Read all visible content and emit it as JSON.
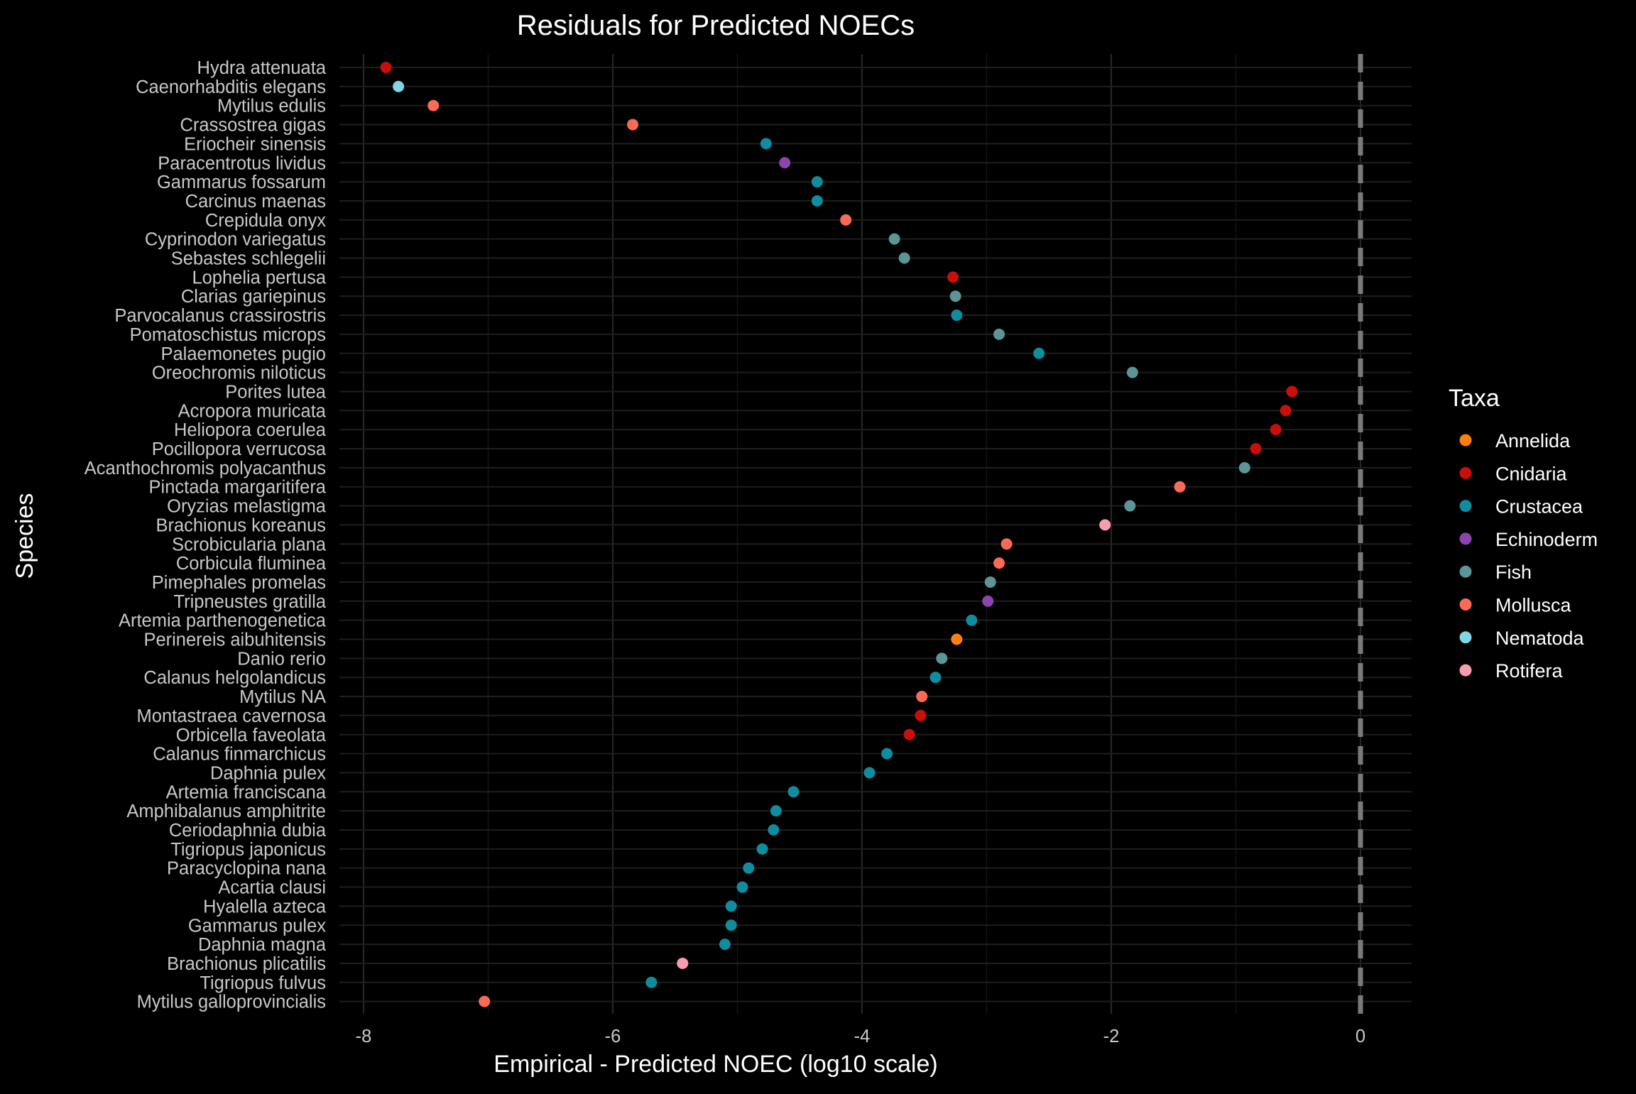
{
  "chart_data": {
    "type": "scatter",
    "title": "Residuals for Predicted NOECs",
    "xlabel": "Empirical - Predicted NOEC (log10 scale)",
    "ylabel": "Species",
    "xlim": [
      -8.3,
      0.4
    ],
    "xticks": [
      -8,
      -6,
      -4,
      -2,
      0
    ],
    "xtick_labels": [
      "-8",
      "-6",
      "-4",
      "-2",
      "0"
    ],
    "reference_line": {
      "x": 0,
      "style": "dashed"
    },
    "grid": true,
    "legend": {
      "title": "Taxa",
      "position": "right"
    },
    "taxa": [
      {
        "name": "Annelida",
        "color": "#ff7f0e"
      },
      {
        "name": "Cnidaria",
        "color": "#c80f0a"
      },
      {
        "name": "Crustacea",
        "color": "#0f8c9e"
      },
      {
        "name": "Echinoderm",
        "color": "#8e44ad"
      },
      {
        "name": "Fish",
        "color": "#5b9595"
      },
      {
        "name": "Mollusca",
        "color": "#fb6a54"
      },
      {
        "name": "Nematoda",
        "color": "#7fd6e4"
      },
      {
        "name": "Rotifera",
        "color": "#fb9cae"
      }
    ],
    "points": [
      {
        "species": "Hydra attenuata",
        "x": -7.82,
        "taxa": "Cnidaria"
      },
      {
        "species": "Caenorhabditis elegans",
        "x": -7.72,
        "taxa": "Nematoda"
      },
      {
        "species": "Mytilus edulis",
        "x": -7.44,
        "taxa": "Mollusca"
      },
      {
        "species": "Crassostrea gigas",
        "x": -5.84,
        "taxa": "Mollusca"
      },
      {
        "species": "Eriocheir sinensis",
        "x": -4.77,
        "taxa": "Crustacea"
      },
      {
        "species": "Paracentrotus lividus",
        "x": -4.62,
        "taxa": "Echinoderm"
      },
      {
        "species": "Gammarus fossarum",
        "x": -4.36,
        "taxa": "Crustacea"
      },
      {
        "species": "Carcinus maenas",
        "x": -4.36,
        "taxa": "Crustacea"
      },
      {
        "species": "Crepidula onyx",
        "x": -4.13,
        "taxa": "Mollusca"
      },
      {
        "species": "Cyprinodon variegatus",
        "x": -3.74,
        "taxa": "Fish"
      },
      {
        "species": "Sebastes schlegelii",
        "x": -3.66,
        "taxa": "Fish"
      },
      {
        "species": "Lophelia pertusa",
        "x": -3.27,
        "taxa": "Cnidaria"
      },
      {
        "species": "Clarias gariepinus",
        "x": -3.25,
        "taxa": "Fish"
      },
      {
        "species": "Parvocalanus crassirostris",
        "x": -3.24,
        "taxa": "Crustacea"
      },
      {
        "species": "Pomatoschistus microps",
        "x": -2.9,
        "taxa": "Fish"
      },
      {
        "species": "Palaemonetes pugio",
        "x": -2.58,
        "taxa": "Crustacea"
      },
      {
        "species": "Oreochromis niloticus",
        "x": -1.83,
        "taxa": "Fish"
      },
      {
        "species": "Porites lutea",
        "x": -0.55,
        "taxa": "Cnidaria"
      },
      {
        "species": "Acropora muricata",
        "x": -0.6,
        "taxa": "Cnidaria"
      },
      {
        "species": "Heliopora coerulea",
        "x": -0.68,
        "taxa": "Cnidaria"
      },
      {
        "species": "Pocillopora verrucosa",
        "x": -0.84,
        "taxa": "Cnidaria"
      },
      {
        "species": "Acanthochromis polyacanthus",
        "x": -0.93,
        "taxa": "Fish"
      },
      {
        "species": "Pinctada margaritifera",
        "x": -1.45,
        "taxa": "Mollusca"
      },
      {
        "species": "Oryzias melastigma",
        "x": -1.85,
        "taxa": "Fish"
      },
      {
        "species": "Brachionus koreanus",
        "x": -2.05,
        "taxa": "Rotifera"
      },
      {
        "species": "Scrobicularia plana",
        "x": -2.84,
        "taxa": "Mollusca"
      },
      {
        "species": "Corbicula fluminea",
        "x": -2.9,
        "taxa": "Mollusca"
      },
      {
        "species": "Pimephales promelas",
        "x": -2.97,
        "taxa": "Fish"
      },
      {
        "species": "Tripneustes gratilla",
        "x": -2.99,
        "taxa": "Echinoderm"
      },
      {
        "species": "Artemia parthenogenetica",
        "x": -3.12,
        "taxa": "Crustacea"
      },
      {
        "species": "Perinereis aibuhitensis",
        "x": -3.24,
        "taxa": "Annelida"
      },
      {
        "species": "Danio rerio",
        "x": -3.36,
        "taxa": "Fish"
      },
      {
        "species": "Calanus helgolandicus",
        "x": -3.41,
        "taxa": "Crustacea"
      },
      {
        "species": "Mytilus NA",
        "x": -3.52,
        "taxa": "Mollusca"
      },
      {
        "species": "Montastraea cavernosa",
        "x": -3.53,
        "taxa": "Cnidaria"
      },
      {
        "species": "Orbicella faveolata",
        "x": -3.62,
        "taxa": "Cnidaria"
      },
      {
        "species": "Calanus finmarchicus",
        "x": -3.8,
        "taxa": "Crustacea"
      },
      {
        "species": "Daphnia pulex",
        "x": -3.94,
        "taxa": "Crustacea"
      },
      {
        "species": "Artemia franciscana",
        "x": -4.55,
        "taxa": "Crustacea"
      },
      {
        "species": "Amphibalanus amphitrite",
        "x": -4.69,
        "taxa": "Crustacea"
      },
      {
        "species": "Ceriodaphnia dubia",
        "x": -4.71,
        "taxa": "Crustacea"
      },
      {
        "species": "Tigriopus japonicus",
        "x": -4.8,
        "taxa": "Crustacea"
      },
      {
        "species": "Paracyclopina nana",
        "x": -4.91,
        "taxa": "Crustacea"
      },
      {
        "species": "Acartia clausi",
        "x": -4.96,
        "taxa": "Crustacea"
      },
      {
        "species": "Hyalella azteca",
        "x": -5.05,
        "taxa": "Crustacea"
      },
      {
        "species": "Gammarus pulex",
        "x": -5.05,
        "taxa": "Crustacea"
      },
      {
        "species": "Daphnia magna",
        "x": -5.1,
        "taxa": "Crustacea"
      },
      {
        "species": "Brachionus plicatilis",
        "x": -5.44,
        "taxa": "Rotifera"
      },
      {
        "species": "Tigriopus fulvus",
        "x": -5.69,
        "taxa": "Crustacea"
      },
      {
        "species": "Mytilus galloprovincialis",
        "x": -7.03,
        "taxa": "Mollusca"
      }
    ]
  }
}
